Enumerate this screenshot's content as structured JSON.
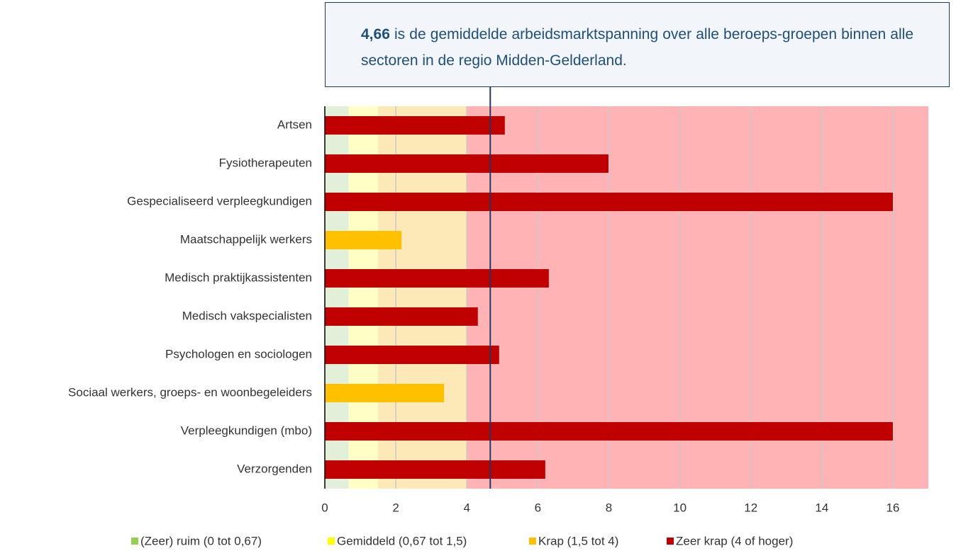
{
  "chart_data": {
    "type": "barh",
    "categories": [
      "Artsen",
      "Fysiotherapeuten",
      "Gespecialiseerd verpleegkundigen",
      "Maatschappelijk werkers",
      "Medisch praktijkassistenten",
      "Medisch vakspecialisten",
      "Psychologen en sociologen",
      "Sociaal werkers, groeps- en woonbegeleiders",
      "Verpleegkundigen (mbo)",
      "Verzorgenden"
    ],
    "values": [
      5.07,
      7.99,
      16,
      2.16,
      6.31,
      4.31,
      4.91,
      3.36,
      16,
      6.21
    ],
    "colors": [
      "#c00000",
      "#c00000",
      "#c00000",
      "#ffc000",
      "#c00000",
      "#c00000",
      "#c00000",
      "#ffc000",
      "#c00000",
      "#c00000"
    ],
    "xlim": [
      0,
      17
    ],
    "xticks": [
      0,
      2,
      4,
      6,
      8,
      10,
      12,
      14,
      16
    ],
    "grid": true,
    "bands": [
      {
        "label": "(Zeer) ruim (0 tot 0,67)",
        "color": "#92d050",
        "band_color": "#e2efd9",
        "from": 0
      },
      {
        "label": "Gemiddeld (0,67 tot 1,5)",
        "color": "#ffff00",
        "band_color": "#ffffc5",
        "from": 0.67
      },
      {
        "label": "Krap (1,5 tot 4)",
        "color": "#ffc000",
        "band_color": "#fde9b8",
        "from": 1.5
      },
      {
        "label": "Zeer krap (4 of hoger)",
        "color": "#c00000",
        "band_color": "#ffb3b5",
        "from": 4
      }
    ],
    "annotation": {
      "value": 4.66,
      "value_label": "4,66",
      "text": "is de gemiddelde arbeidsmarktspanning over alle beroeps-groepen binnen alle sectoren in de regio Midden-Gelderland."
    }
  }
}
